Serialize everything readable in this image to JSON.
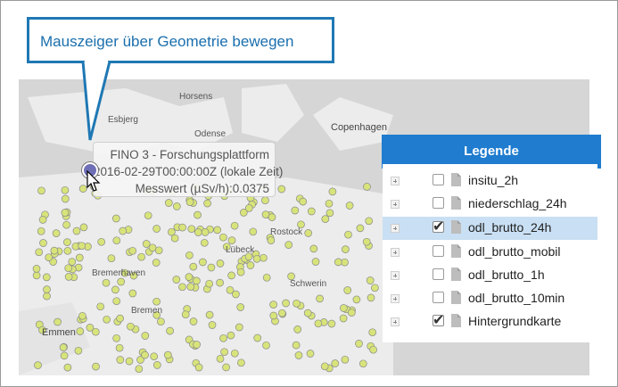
{
  "callout": {
    "text": "Mauszeiger über Geometrie bewegen"
  },
  "tooltip": {
    "name": "FINO 3 - Forschungsplattform",
    "time": "2016-02-29T00:00:00Z (lokale Zeit)",
    "value": "Messwert (µSv/h):0.0375"
  },
  "map": {
    "places": [
      "Horsens",
      "Esbjerg",
      "Odense",
      "Copenhagen",
      "Rostock",
      "Lübeck",
      "Bremerhaven",
      "Schwerin",
      "Bremen",
      "Emmen"
    ]
  },
  "legend": {
    "title": "Legende",
    "items": [
      {
        "label": "insitu_2h",
        "checked": false
      },
      {
        "label": "niederschlag_24h",
        "checked": false
      },
      {
        "label": "odl_brutto_24h",
        "checked": true
      },
      {
        "label": "odl_brutto_mobil",
        "checked": false
      },
      {
        "label": "odl_brutto_1h",
        "checked": false
      },
      {
        "label": "odl_brutto_10min",
        "checked": false
      },
      {
        "label": "Hintergrundkarte",
        "checked": true
      }
    ]
  },
  "colors": {
    "accent": "#1f7ccf",
    "callout_border": "#1f78b4",
    "selected_row": "#c9dff3",
    "station_dot": "#d8e47a",
    "marker": "#6f6fb7"
  }
}
